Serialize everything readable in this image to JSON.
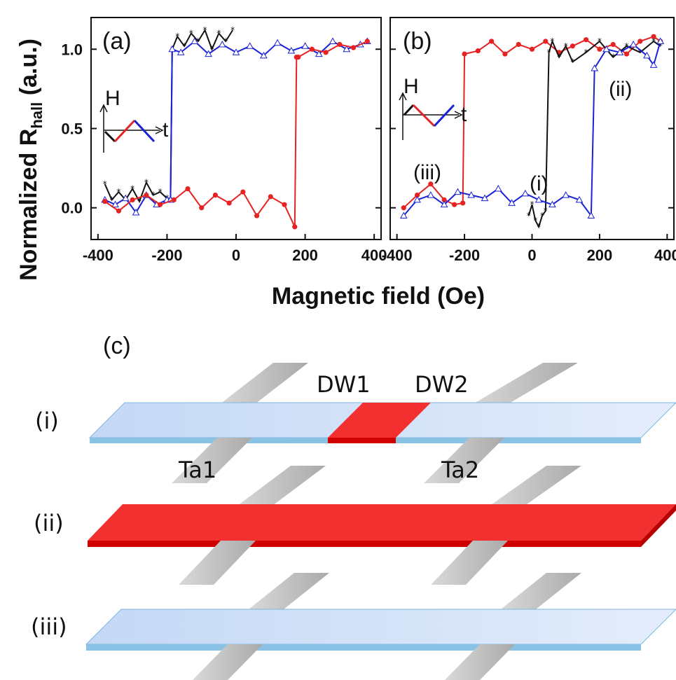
{
  "figure": {
    "ylabel_main": "Normalized R",
    "ylabel_sub": "hall",
    "ylabel_unit": " (a.u.)",
    "xlabel": "Magnetic field (Oe)"
  },
  "colors": {
    "black_trace": "#111111",
    "red_trace": "#e62222",
    "blue_trace": "#1a22d6",
    "strip_light": "#cfe0f7",
    "strip_red": "#f23030",
    "electrode": "#c8c8c8"
  },
  "chart_data": [
    {
      "type": "line",
      "panel": "(a)",
      "x_range": [
        -420,
        420
      ],
      "y_range": [
        -0.2,
        1.2
      ],
      "xticks": [
        "-400",
        "-200",
        "0",
        "200",
        "400"
      ],
      "yticks": [
        "0.0",
        "0.5",
        "1.0"
      ],
      "inset": {
        "y_label": "H",
        "x_label": "t"
      },
      "series": [
        {
          "color": "black",
          "marker": "star",
          "x": [
            -380,
            -360,
            -340,
            -320,
            -300,
            -280,
            -260,
            -240,
            -220,
            -200,
            -190,
            -185,
            -170,
            -150,
            -130,
            -110,
            -90,
            -70,
            -50,
            -30,
            -10
          ],
          "y": [
            0.15,
            0.05,
            0.1,
            0.05,
            0.12,
            0.04,
            0.16,
            0.08,
            0.1,
            0.06,
            0.05,
            1.0,
            1.08,
            1.02,
            1.1,
            1.05,
            1.12,
            1.0,
            1.1,
            1.05,
            1.12
          ]
        },
        {
          "color": "blue",
          "marker": "triangle",
          "x": [
            -380,
            -350,
            -320,
            -290,
            -260,
            -230,
            -200,
            -190,
            -185,
            -160,
            -120,
            -80,
            -40,
            0,
            40,
            80,
            120,
            160,
            200,
            240,
            280,
            320,
            360,
            380
          ],
          "y": [
            0.05,
            0.02,
            0.06,
            -0.03,
            0.08,
            0.02,
            0.05,
            0.05,
            1.0,
            0.98,
            1.05,
            0.97,
            1.03,
            0.98,
            1.02,
            0.96,
            1.04,
            0.99,
            1.02,
            0.97,
            1.05,
            1.0,
            1.03,
            1.05
          ]
        },
        {
          "color": "red",
          "marker": "circle",
          "x": [
            -380,
            -340,
            -300,
            -260,
            -220,
            -180,
            -140,
            -100,
            -60,
            -20,
            20,
            60,
            100,
            140,
            170,
            175,
            180,
            220,
            260,
            300,
            340,
            380
          ],
          "y": [
            0.04,
            -0.02,
            0.05,
            0.08,
            0.02,
            0.05,
            0.12,
            0.0,
            0.08,
            0.03,
            0.1,
            -0.05,
            0.07,
            0.02,
            -0.12,
            0.95,
            0.95,
            1.0,
            0.98,
            1.03,
            1.01,
            1.05
          ]
        }
      ]
    },
    {
      "type": "line",
      "panel": "(b)",
      "x_range": [
        -420,
        420
      ],
      "y_range": [
        -0.2,
        1.2
      ],
      "xticks": [
        "-400",
        "-200",
        "0",
        "200",
        "400"
      ],
      "yticks": [],
      "inset": {
        "y_label": "H",
        "x_label": "t"
      },
      "annotations": [
        "(i)",
        "(ii)",
        "(iii)"
      ],
      "series": [
        {
          "color": "red",
          "marker": "circle",
          "x": [
            -380,
            -340,
            -300,
            -260,
            -230,
            -205,
            -200,
            -160,
            -120,
            -80,
            -40,
            0,
            40,
            80,
            120,
            160,
            200,
            240,
            280,
            320,
            360,
            380
          ],
          "y": [
            0.0,
            0.08,
            0.15,
            0.05,
            0.02,
            0.03,
            0.97,
            0.99,
            1.05,
            0.97,
            1.03,
            1.0,
            1.05,
            0.98,
            1.02,
            1.06,
            1.0,
            1.03,
            0.97,
            1.05,
            1.08,
            1.05
          ]
        },
        {
          "color": "black",
          "marker": "star",
          "x": [
            -10,
            0,
            10,
            20,
            30,
            40,
            50,
            60,
            80,
            100,
            120,
            160,
            200,
            240,
            280,
            320,
            360,
            380
          ],
          "y": [
            -0.05,
            0.02,
            -0.08,
            -0.12,
            -0.05,
            -0.02,
            0.98,
            1.05,
            0.95,
            1.02,
            0.92,
            0.98,
            1.05,
            0.95,
            1.02,
            0.98,
            1.05,
            1.02
          ]
        },
        {
          "color": "blue",
          "marker": "triangle",
          "x": [
            -380,
            -340,
            -300,
            -260,
            -220,
            -180,
            -140,
            -100,
            -60,
            -20,
            20,
            60,
            100,
            140,
            175,
            185,
            220,
            260,
            300,
            340,
            360,
            380
          ],
          "y": [
            -0.05,
            0.05,
            0.08,
            0.02,
            0.1,
            0.08,
            0.06,
            0.12,
            0.03,
            0.09,
            0.05,
            0.02,
            0.08,
            0.05,
            -0.05,
            0.88,
            1.0,
            0.98,
            1.03,
            0.96,
            0.9,
            1.05
          ]
        }
      ]
    }
  ],
  "diagram": {
    "panel_label": "(c)",
    "row_labels": [
      "(i)",
      "(ii)",
      "(iii)"
    ],
    "dw_labels": [
      "DW1",
      "DW2"
    ],
    "electrode_labels": [
      "Ta1",
      "Ta2"
    ]
  }
}
